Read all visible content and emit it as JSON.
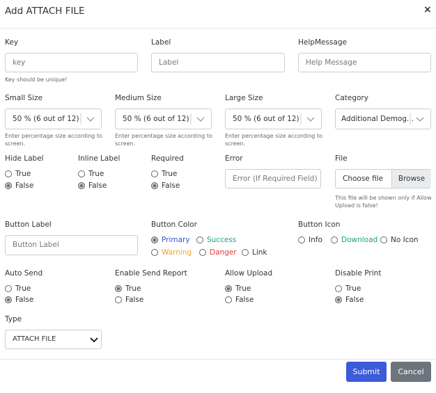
{
  "header": {
    "title": "Add ATTACH FILE",
    "close": "×"
  },
  "text_fields": {
    "key": {
      "label": "Key",
      "placeholder": "key",
      "help": "Key should be unique!"
    },
    "label": {
      "label": "Label",
      "placeholder": "Label"
    },
    "help_message": {
      "label": "HelpMessage",
      "placeholder": "Help Message"
    },
    "error": {
      "label": "Error",
      "placeholder": "Error (If Required Field)"
    },
    "button_label": {
      "label": "Button Label",
      "placeholder": "Button Label"
    }
  },
  "selects": {
    "small_size": {
      "label": "Small Size",
      "value": "50 % (6 out of 12)",
      "help": "Enter percentage size according to screen."
    },
    "medium_size": {
      "label": "Medium Size",
      "value": "50 % (6 out of 12)",
      "help": "Enter percentage size according to screen."
    },
    "large_size": {
      "label": "Large Size",
      "value": "50 % (6 out of 12)",
      "help": "Enter percentage size according to screen."
    },
    "category": {
      "label": "Category",
      "value": "Additional Demog..."
    },
    "type": {
      "label": "Type",
      "value": "ATTACH FILE"
    }
  },
  "file": {
    "label": "File",
    "choose": "Choose file",
    "browse": "Browse",
    "help": "This file will be shown only if Allow Upload is false!"
  },
  "radio_groups": {
    "hide_label": {
      "label": "Hide Label",
      "options": [
        {
          "label": "True",
          "checked": false
        },
        {
          "label": "False",
          "checked": true
        }
      ]
    },
    "inline_label": {
      "label": "Inline Label",
      "options": [
        {
          "label": "True",
          "checked": false
        },
        {
          "label": "False",
          "checked": true
        }
      ]
    },
    "required": {
      "label": "Required",
      "options": [
        {
          "label": "True",
          "checked": false
        },
        {
          "label": "False",
          "checked": true
        }
      ]
    },
    "button_color": {
      "label": "Button Color",
      "options": [
        {
          "label": "Primary",
          "checked": true,
          "color": "#2f55d4"
        },
        {
          "label": "Success",
          "checked": false,
          "color": "#1aa37a"
        },
        {
          "label": "Warning",
          "checked": false,
          "color": "#f0a030"
        },
        {
          "label": "Danger",
          "checked": false,
          "color": "#e23c3c"
        },
        {
          "label": "Link",
          "checked": false,
          "color": "#333333"
        }
      ]
    },
    "button_icon": {
      "label": "Button Icon",
      "options": [
        {
          "label": "Info",
          "checked": false,
          "color": "#333333"
        },
        {
          "label": "Download",
          "checked": false,
          "color": "#1aa37a"
        },
        {
          "label": "No Icon",
          "checked": false,
          "color": "#333333"
        }
      ]
    },
    "auto_send": {
      "label": "Auto Send",
      "options": [
        {
          "label": "True",
          "checked": false
        },
        {
          "label": "False",
          "checked": true
        }
      ]
    },
    "enable_send_report": {
      "label": "Enable Send Report",
      "options": [
        {
          "label": "True",
          "checked": true
        },
        {
          "label": "False",
          "checked": false
        }
      ]
    },
    "allow_upload": {
      "label": "Allow Upload",
      "options": [
        {
          "label": "True",
          "checked": true
        },
        {
          "label": "False",
          "checked": false
        }
      ]
    },
    "disable_print": {
      "label": "Disable Print",
      "options": [
        {
          "label": "True",
          "checked": false
        },
        {
          "label": "False",
          "checked": true
        }
      ]
    }
  },
  "footer": {
    "submit": "Submit",
    "cancel": "Cancel"
  }
}
